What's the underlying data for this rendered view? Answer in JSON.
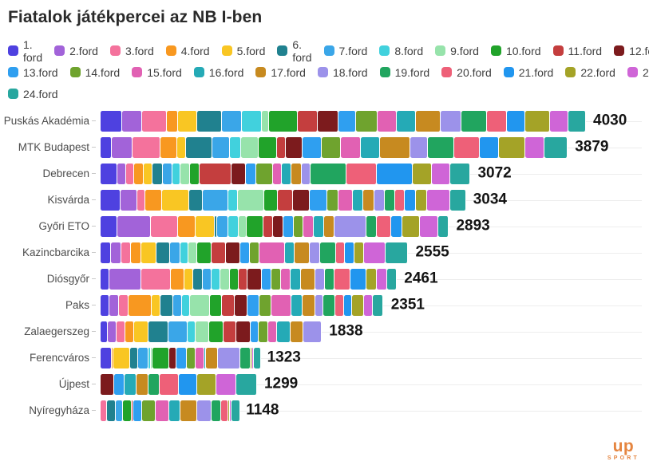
{
  "title": "Fiatalok játékpercei az NB I-ben",
  "logo": {
    "text": "up",
    "subtext": "SPORT",
    "color": "#e58540"
  },
  "chart_data": {
    "type": "bar",
    "variant": "stacked-horizontal",
    "title": "Fiatalok játékpercei az NB I-ben",
    "unit": "minutes",
    "xlim": [
      0,
      4030
    ],
    "grid": "row-lines",
    "legend_position": "top",
    "legend_row_breaks": [
      12,
      23
    ],
    "rounds": [
      {
        "label": "1. ford",
        "color": "#4e41e0"
      },
      {
        "label": "2.ford",
        "color": "#a263d9"
      },
      {
        "label": "3.ford",
        "color": "#f4729c"
      },
      {
        "label": "4.ford",
        "color": "#f89820"
      },
      {
        "label": "5.ford",
        "color": "#f9c623"
      },
      {
        "label": "6. ford",
        "color": "#20818f"
      },
      {
        "label": "7.ford",
        "color": "#3aa6e8"
      },
      {
        "label": "8.ford",
        "color": "#41d1dd"
      },
      {
        "label": "9.ford",
        "color": "#97e3ab"
      },
      {
        "label": "10.ford",
        "color": "#21a32a"
      },
      {
        "label": "11.ford",
        "color": "#c43e3e"
      },
      {
        "label": "12.ford",
        "color": "#7c1b1d"
      },
      {
        "label": "13.ford",
        "color": "#2f9ff0"
      },
      {
        "label": "14.ford",
        "color": "#6fa32e"
      },
      {
        "label": "15.ford",
        "color": "#e161b3"
      },
      {
        "label": "16.ford",
        "color": "#25aab6"
      },
      {
        "label": "17.ford",
        "color": "#c78a20"
      },
      {
        "label": "18.ford",
        "color": "#9c92ea"
      },
      {
        "label": "19.ford",
        "color": "#21a55f"
      },
      {
        "label": "20.ford",
        "color": "#ee6078"
      },
      {
        "label": "21.ford",
        "color": "#2196ef"
      },
      {
        "label": "22.ford",
        "color": "#a4a327"
      },
      {
        "label": "23.ford",
        "color": "#cf65d7"
      },
      {
        "label": "24.ford",
        "color": "#28a79f"
      }
    ],
    "teams": [
      {
        "name": "Puskás Akadémia",
        "total": 4030,
        "minutes_by_round": [
          180,
          165,
          205,
          90,
          160,
          210,
          165,
          165,
          60,
          240,
          165,
          170,
          145,
          180,
          160,
          160,
          205,
          175,
          210,
          165,
          150,
          210,
          150,
          145
        ]
      },
      {
        "name": "MTK Budapest",
        "total": 3879,
        "minutes_by_round": [
          95,
          170,
          230,
          140,
          75,
          215,
          150,
          90,
          150,
          150,
          70,
          140,
          160,
          160,
          165,
          160,
          250,
          150,
          215,
          215,
          160,
          215,
          160,
          194
        ]
      },
      {
        "name": "Debrecen",
        "total": 3072,
        "minutes_by_round": [
          140,
          75,
          65,
          80,
          70,
          85,
          80,
          70,
          80,
          75,
          270,
          120,
          80,
          140,
          75,
          80,
          85,
          75,
          300,
          250,
          295,
          160,
          155,
          167
        ]
      },
      {
        "name": "Kisvárda",
        "total": 3034,
        "minutes_by_round": [
          164,
          140,
          70,
          135,
          230,
          110,
          210,
          80,
          220,
          110,
          130,
          135,
          150,
          90,
          120,
          90,
          90,
          85,
          90,
          80,
          90,
          95,
          190,
          130
        ]
      },
      {
        "name": "Győri ETO",
        "total": 2893,
        "minutes_by_round": [
          140,
          280,
          220,
          150,
          160,
          20,
          90,
          85,
          70,
          140,
          80,
          85,
          85,
          80,
          85,
          90,
          85,
          260,
          90,
          120,
          90,
          150,
          150,
          88
        ]
      },
      {
        "name": "Kazincbarcika",
        "total": 2555,
        "minutes_by_round": [
          85,
          90,
          75,
          85,
          130,
          110,
          85,
          70,
          75,
          120,
          115,
          120,
          80,
          80,
          210,
          80,
          130,
          85,
          130,
          75,
          80,
          75,
          180,
          190
        ]
      },
      {
        "name": "Diósgyőr",
        "total": 2461,
        "minutes_by_round": [
          75,
          261,
          250,
          110,
          70,
          80,
          75,
          75,
          80,
          70,
          75,
          120,
          75,
          85,
          80,
          80,
          120,
          80,
          85,
          130,
          130,
          90,
          85,
          80
        ]
      },
      {
        "name": "Paks",
        "total": 2351,
        "minutes_by_round": [
          70,
          85,
          75,
          196,
          70,
          110,
          70,
          70,
          160,
          100,
          105,
          110,
          100,
          100,
          165,
          95,
          100,
          70,
          100,
          70,
          70,
          100,
          70,
          90
        ]
      },
      {
        "name": "Zalaegerszeg",
        "total": 1838,
        "minutes_by_round": [
          60,
          75,
          70,
          75,
          120,
          165,
          160,
          65,
          110,
          120,
          110,
          115,
          70,
          75,
          75,
          110,
          108,
          155,
          0,
          0,
          0,
          0,
          0,
          0
        ]
      },
      {
        "name": "Ferencváros",
        "total": 1323,
        "minutes_by_round": [
          90,
          0,
          0,
          15,
          140,
          70,
          85,
          20,
          10,
          140,
          0,
          60,
          85,
          70,
          75,
          15,
          100,
          180,
          90,
          0,
          0,
          10,
          8,
          60
        ]
      },
      {
        "name": "Újpest",
        "total": 1299,
        "minutes_by_round": [
          0,
          0,
          0,
          0,
          0,
          0,
          0,
          0,
          0,
          0,
          0,
          110,
          90,
          0,
          0,
          95,
          100,
          0,
          95,
          160,
          150,
          160,
          170,
          169
        ]
      },
      {
        "name": "Nyíregyháza",
        "total": 1148,
        "minutes_by_round": [
          0,
          0,
          55,
          0,
          0,
          70,
          60,
          0,
          0,
          75,
          8,
          0,
          70,
          115,
          115,
          90,
          140,
          120,
          75,
          65,
          0,
          12,
          10,
          68
        ]
      }
    ]
  }
}
